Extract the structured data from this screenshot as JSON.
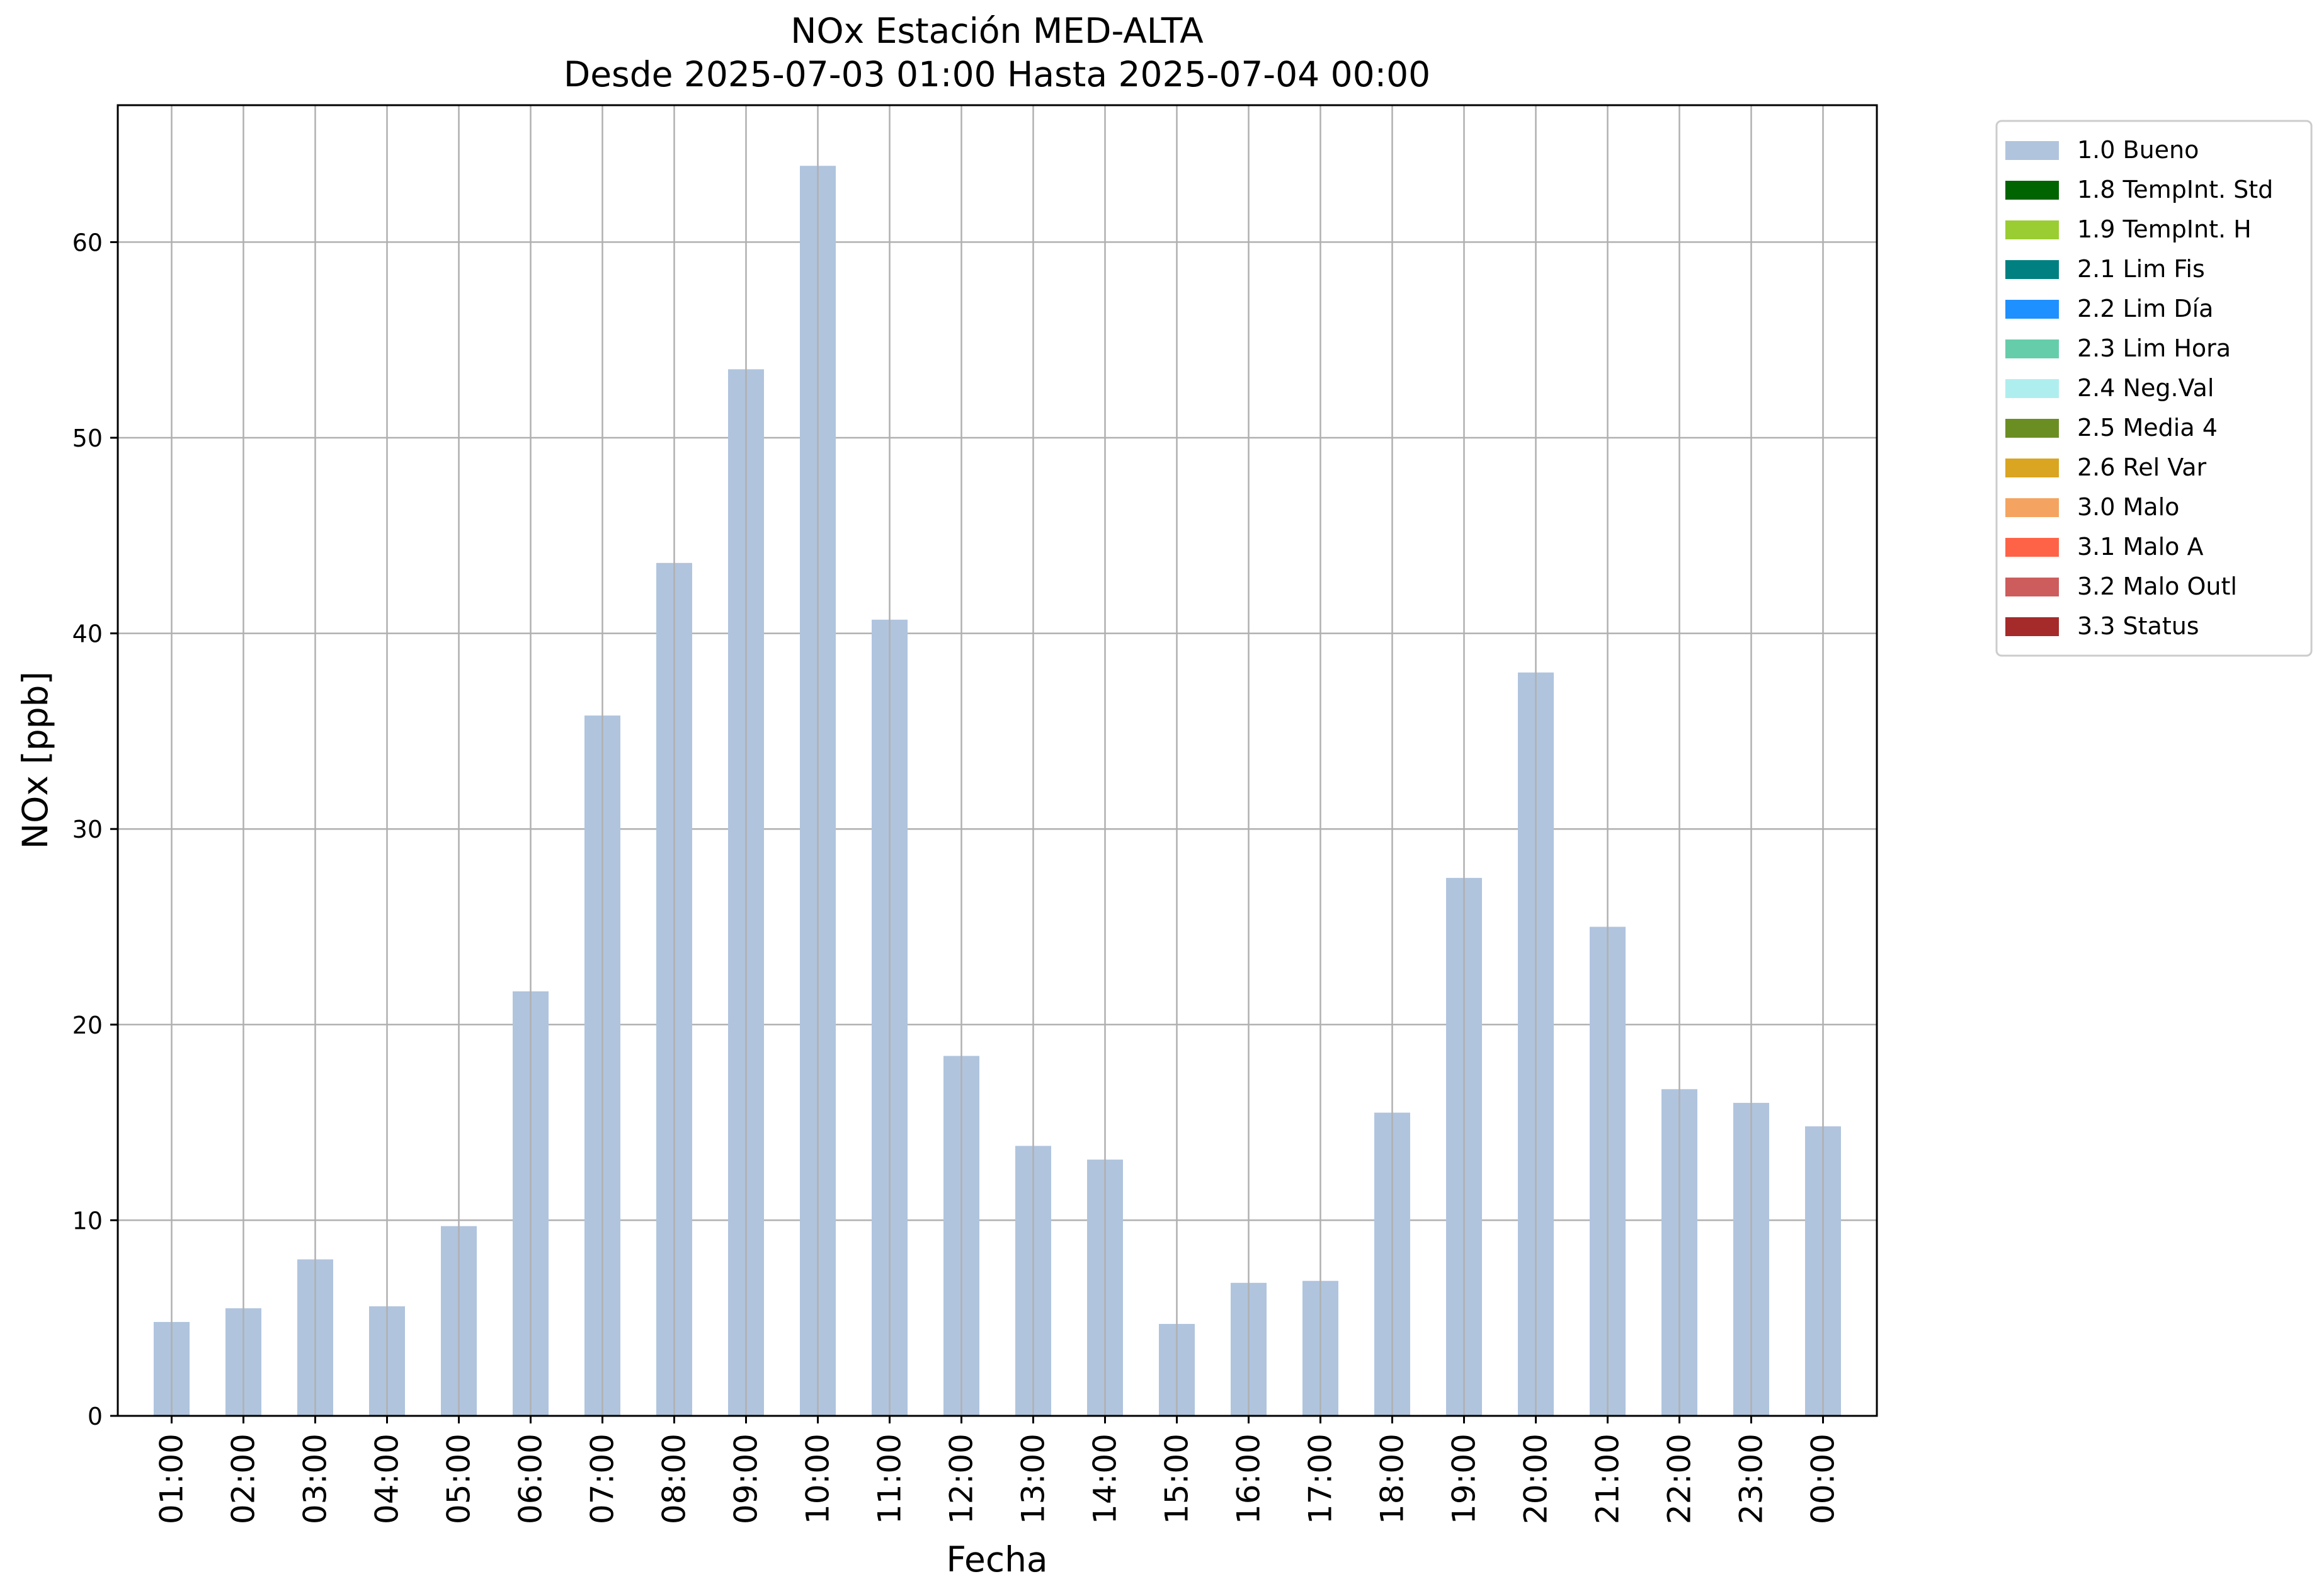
{
  "chart_data": {
    "type": "bar",
    "title": "NOx Estación MED-ALTA",
    "subtitle": "Desde 2025-07-03 01:00 Hasta 2025-07-04 00:00",
    "xlabel": "Fecha",
    "ylabel": "NOx [ppb]",
    "ylim": [
      0,
      67
    ],
    "yticks": [
      0,
      10,
      20,
      30,
      40,
      50,
      60
    ],
    "grid": true,
    "legend_position": "outside top-right",
    "categories": [
      "01:00",
      "02:00",
      "03:00",
      "04:00",
      "05:00",
      "06:00",
      "07:00",
      "08:00",
      "09:00",
      "10:00",
      "11:00",
      "12:00",
      "13:00",
      "14:00",
      "15:00",
      "16:00",
      "17:00",
      "18:00",
      "19:00",
      "20:00",
      "21:00",
      "22:00",
      "23:00",
      "00:00"
    ],
    "series": [
      {
        "name": "1.0 Bueno",
        "color": "#b0c4de",
        "values": [
          4.8,
          5.5,
          8.0,
          5.6,
          9.7,
          21.7,
          35.8,
          43.6,
          53.5,
          63.9,
          40.7,
          18.4,
          13.8,
          13.1,
          4.7,
          6.8,
          6.9,
          15.5,
          27.5,
          38.0,
          25.0,
          16.7,
          16.0,
          14.8
        ]
      }
    ],
    "legend": [
      {
        "label": "1.0 Bueno",
        "color": "#b0c4de"
      },
      {
        "label": "1.8 TempInt. Std",
        "color": "#006400"
      },
      {
        "label": "1.9 TempInt. H",
        "color": "#9acd32"
      },
      {
        "label": "2.1 Lim Fis",
        "color": "#008080"
      },
      {
        "label": "2.2 Lim Día",
        "color": "#1e90ff"
      },
      {
        "label": "2.3 Lim Hora",
        "color": "#66cdaa"
      },
      {
        "label": "2.4 Neg.Val",
        "color": "#afeeee"
      },
      {
        "label": "2.5 Media 4",
        "color": "#6b8e23"
      },
      {
        "label": "2.6 Rel Var",
        "color": "#daa520"
      },
      {
        "label": "3.0 Malo",
        "color": "#f4a460"
      },
      {
        "label": "3.1 Malo A",
        "color": "#ff6347"
      },
      {
        "label": "3.2 Malo Outl",
        "color": "#cd5c5c"
      },
      {
        "label": "3.3 Status",
        "color": "#a52a2a"
      }
    ]
  }
}
